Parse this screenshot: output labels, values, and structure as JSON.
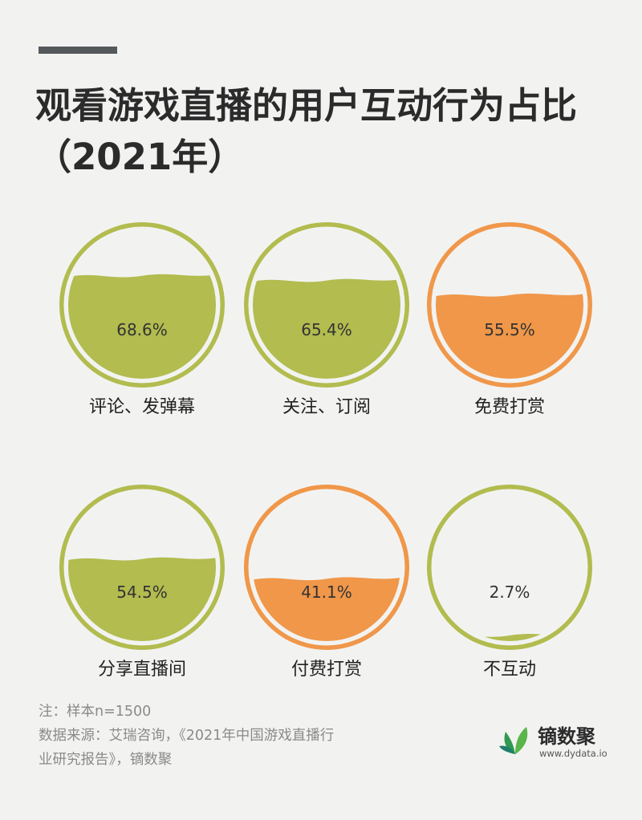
{
  "title_line1": "观看游戏直播的用户互动行为占比",
  "title_line2": "（2021年）",
  "colors": {
    "green": "#b2bc4f",
    "orange": "#f0974a",
    "background": "#f2f3f1"
  },
  "chart_data": {
    "type": "gauge",
    "unit": "%",
    "items": [
      {
        "label": "评论、发弹幕",
        "value": 68.6,
        "value_text": "68.6%",
        "color": "#b2bc4f"
      },
      {
        "label": "关注、订阅",
        "value": 65.4,
        "value_text": "65.4%",
        "color": "#b2bc4f"
      },
      {
        "label": "免费打赏",
        "value": 55.5,
        "value_text": "55.5%",
        "color": "#f0974a"
      },
      {
        "label": "分享直播间",
        "value": 54.5,
        "value_text": "54.5%",
        "color": "#b2bc4f"
      },
      {
        "label": "付费打赏",
        "value": 41.1,
        "value_text": "41.1%",
        "color": "#f0974a"
      },
      {
        "label": "不互动",
        "value": 2.7,
        "value_text": "2.7%",
        "color": "#b2bc4f"
      }
    ]
  },
  "footer": {
    "note": "注：样本n=1500",
    "source_line1": "数据来源：艾瑞咨询，《2021年中国游戏直播行",
    "source_line2": "业研究报告》，镝数聚"
  },
  "brand": {
    "name": "镝数聚",
    "url": "www.dydata.io"
  }
}
